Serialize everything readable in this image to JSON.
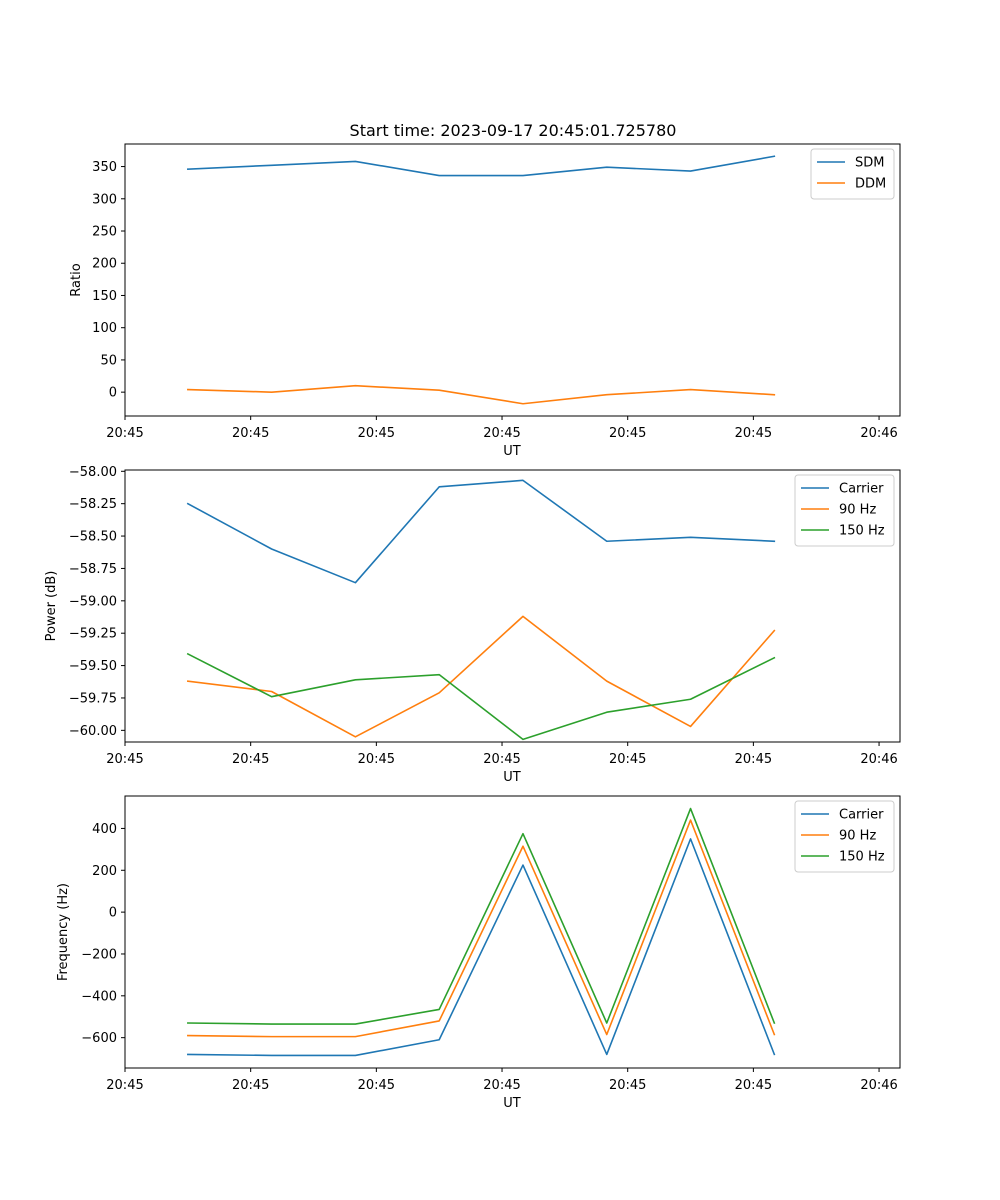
{
  "figure": {
    "title": "Start time: 2023-09-17 20:45:01.725780"
  },
  "chart_data": [
    {
      "type": "line",
      "title": "Start time: 2023-09-17 20:45:01.725780",
      "xlabel": "UT",
      "ylabel": "Ratio",
      "x": [
        0,
        1,
        2,
        3,
        4,
        5,
        6,
        7
      ],
      "xlim": [
        -0.75,
        8.5
      ],
      "xticks": [
        -0.75,
        0.75,
        2.25,
        3.75,
        5.25,
        6.75,
        8.25
      ],
      "xtick_labels": [
        "20:45",
        "20:45",
        "20:45",
        "20:45",
        "20:45",
        "20:45",
        "20:46"
      ],
      "ylim": [
        -37,
        385
      ],
      "yticks": [
        0,
        50,
        100,
        150,
        200,
        250,
        300,
        350
      ],
      "legend": "top-right",
      "series": [
        {
          "name": "SDM",
          "color": "#1f77b4",
          "values": [
            346,
            352,
            358,
            336,
            336,
            349,
            343,
            366
          ]
        },
        {
          "name": "DDM",
          "color": "#ff7f0e",
          "values": [
            4,
            0,
            10,
            3,
            -18,
            -4,
            4,
            -4
          ]
        }
      ]
    },
    {
      "type": "line",
      "title": "",
      "xlabel": "UT",
      "ylabel": "Power (dB)",
      "x": [
        0,
        1,
        2,
        3,
        4,
        5,
        6,
        7
      ],
      "xlim": [
        -0.75,
        8.5
      ],
      "xticks": [
        -0.75,
        0.75,
        2.25,
        3.75,
        5.25,
        6.75,
        8.25
      ],
      "xtick_labels": [
        "20:45",
        "20:45",
        "20:45",
        "20:45",
        "20:45",
        "20:45",
        "20:46"
      ],
      "ylim": [
        -60.09,
        -57.99
      ],
      "yticks": [
        -60.0,
        -59.75,
        -59.5,
        -59.25,
        -59.0,
        -58.75,
        -58.5,
        -58.25,
        -58.0
      ],
      "ytick_labels": [
        "−60.00",
        "−59.75",
        "−59.50",
        "−59.25",
        "−59.00",
        "−58.75",
        "−58.50",
        "−58.25",
        "−58.00"
      ],
      "legend": "top-right",
      "series": [
        {
          "name": "Carrier",
          "color": "#1f77b4",
          "values": [
            -58.25,
            -58.6,
            -58.86,
            -58.12,
            -58.07,
            -58.54,
            -58.51,
            -58.54
          ]
        },
        {
          "name": "90 Hz",
          "color": "#ff7f0e",
          "values": [
            -59.62,
            -59.7,
            -60.05,
            -59.71,
            -59.12,
            -59.62,
            -59.97,
            -59.23
          ]
        },
        {
          "name": "150 Hz",
          "color": "#2ca02c",
          "values": [
            -59.41,
            -59.74,
            -59.61,
            -59.57,
            -60.07,
            -59.86,
            -59.76,
            -59.44
          ]
        }
      ]
    },
    {
      "type": "line",
      "title": "",
      "xlabel": "UT",
      "ylabel": "Frequency (Hz)",
      "x": [
        0,
        1,
        2,
        3,
        4,
        5,
        6,
        7
      ],
      "xlim": [
        -0.75,
        8.5
      ],
      "xticks": [
        -0.75,
        0.75,
        2.25,
        3.75,
        5.25,
        6.75,
        8.25
      ],
      "xtick_labels": [
        "20:45",
        "20:45",
        "20:45",
        "20:45",
        "20:45",
        "20:45",
        "20:46"
      ],
      "ylim": [
        -745,
        555
      ],
      "yticks": [
        -600,
        -400,
        -200,
        0,
        200,
        400
      ],
      "ytick_labels": [
        "−600",
        "−400",
        "−200",
        "0",
        "200",
        "400"
      ],
      "legend": "top-right",
      "series": [
        {
          "name": "Carrier",
          "color": "#1f77b4",
          "values": [
            -680,
            -685,
            -685,
            -610,
            225,
            -680,
            350,
            -680
          ]
        },
        {
          "name": "90 Hz",
          "color": "#ff7f0e",
          "values": [
            -590,
            -595,
            -595,
            -520,
            315,
            -585,
            440,
            -585
          ]
        },
        {
          "name": "150 Hz",
          "color": "#2ca02c",
          "values": [
            -530,
            -535,
            -535,
            -465,
            375,
            -530,
            495,
            -530
          ]
        }
      ]
    }
  ]
}
